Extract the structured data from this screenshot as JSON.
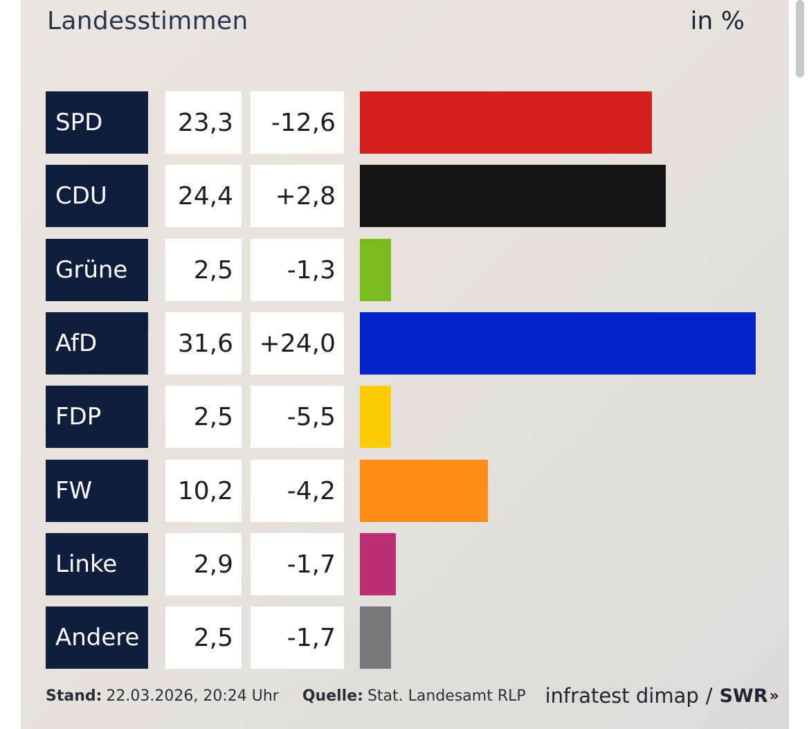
{
  "header": {
    "title": "Landesstimmen",
    "unit": "in %"
  },
  "footer": {
    "stand_label": "Stand:",
    "stand_value": "22.03.2026, 20:24 Uhr",
    "quelle_label": "Quelle:",
    "quelle_value": "Stat. Landesamt RLP",
    "pollster": "infratest dimap",
    "separator": "/",
    "broadcaster": "SWR",
    "broadcaster_icon": "double-chevron-right-icon",
    "broadcaster_icon_glyph": "»"
  },
  "chart_data": {
    "type": "bar",
    "orientation": "horizontal",
    "title": "Landesstimmen",
    "unit": "in %",
    "categories": [
      "SPD",
      "CDU",
      "Grüne",
      "AfD",
      "FDP",
      "FW",
      "Linke",
      "Andere"
    ],
    "values": [
      23.3,
      24.4,
      2.5,
      31.6,
      2.5,
      10.2,
      2.9,
      2.5
    ],
    "value_labels": [
      "23,3",
      "24,4",
      "2,5",
      "31,6",
      "2,5",
      "10,2",
      "2,9",
      "2,5"
    ],
    "changes": [
      -12.6,
      2.8,
      -1.3,
      24.0,
      -5.5,
      -4.2,
      -1.7,
      -1.7
    ],
    "change_labels": [
      "-12,6",
      "+2,8",
      "-1,3",
      "+24,0",
      "-5,5",
      "-4,2",
      "-1,7",
      "-1,7"
    ],
    "colors": [
      "#d41f1f",
      "#151515",
      "#79bc1b",
      "#0022c8",
      "#fccd05",
      "#fc8c16",
      "#bd2f73",
      "#78787a"
    ],
    "xlim": [
      0,
      31.6
    ],
    "grid": false,
    "legend": "none"
  }
}
